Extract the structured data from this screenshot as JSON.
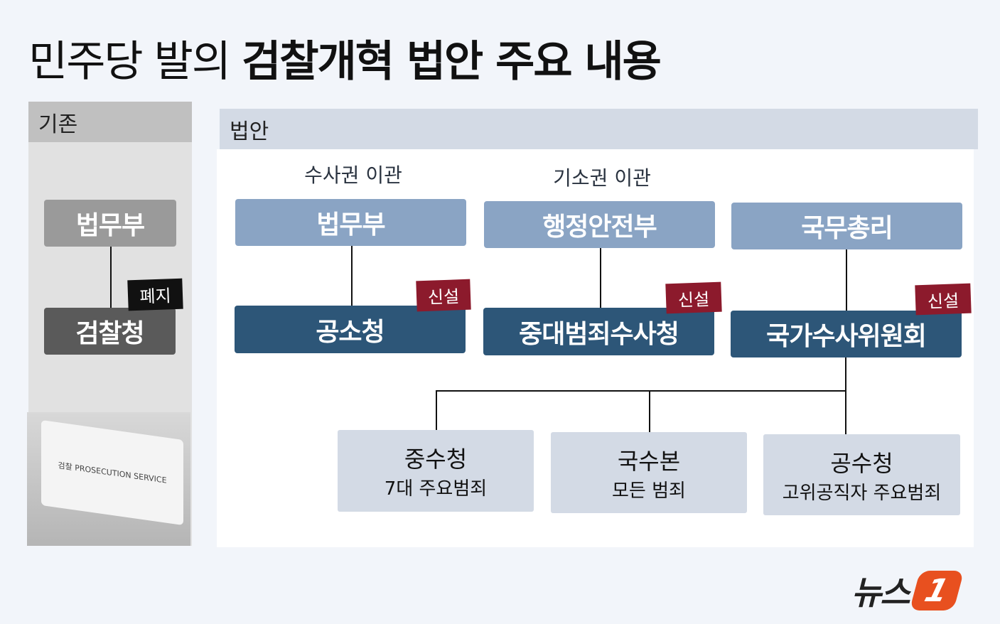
{
  "title": {
    "light": "민주당 발의",
    "bold": "검찰개혁 법안 주요 내용"
  },
  "left": {
    "header": "기존",
    "top_box": "법무부",
    "bottom_box": "검찰청",
    "tag": "폐지",
    "flag_text": "검찰 PROSECUTION SERVICE"
  },
  "right": {
    "header": "법안",
    "columns": [
      {
        "label": "수사권 이관",
        "top": "법무부",
        "bottom": "공소청",
        "tag": "신설"
      },
      {
        "label": "기소권 이관",
        "top": "행정안전부",
        "bottom": "중대범죄수사청",
        "tag": "신설"
      },
      {
        "label": "",
        "top": "국무총리",
        "bottom": "국가수사위원회",
        "tag": "신설"
      }
    ],
    "leaves": [
      {
        "title": "중수청",
        "desc": "7대 주요범죄"
      },
      {
        "title": "국수본",
        "desc": "모든 범죄"
      },
      {
        "title": "공수청",
        "desc": "고위공직자 주요범죄"
      }
    ]
  },
  "logo": {
    "text": "뉴스",
    "mark": "1"
  },
  "colors": {
    "old_top": "#9a9a9a",
    "old_bottom": "#5a5a5a",
    "new_top": "#8aa4c4",
    "new_bottom": "#2d5678",
    "tag_new": "#8c1a2c",
    "tag_abolish": "#111111",
    "leaf": "#d3dae5",
    "logo_accent": "#e8501f"
  }
}
